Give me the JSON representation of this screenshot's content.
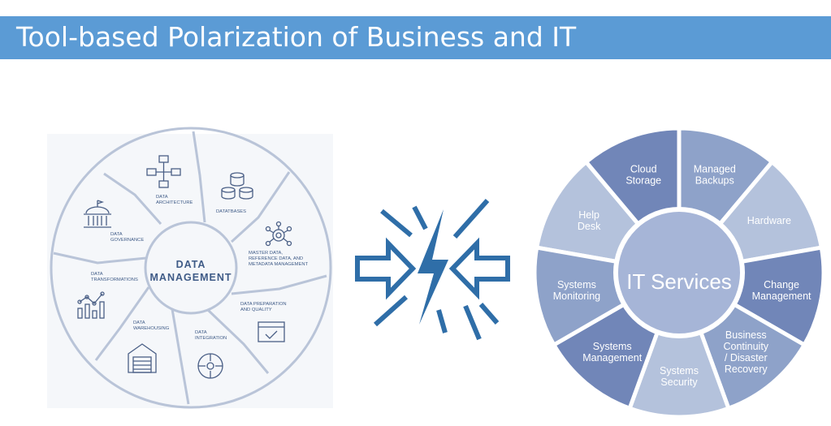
{
  "slide": {
    "title": "Tool-based Polarization of Business and IT"
  },
  "data_management": {
    "center_label_line1": "DATA",
    "center_label_line2": "MANAGEMENT",
    "segments": [
      {
        "lines": [
          "DATA",
          "ARCHITECTURE"
        ],
        "icon": "flowchart-icon"
      },
      {
        "lines": [
          "DATATBASES"
        ],
        "icon": "database-icon"
      },
      {
        "lines": [
          "MASTER DATA,",
          "REFERENCE DATA, AND",
          "METADATA MANAGEMENT"
        ],
        "icon": "gear-network-icon"
      },
      {
        "lines": [
          "DATA PREPARATION",
          "AND QUALITY"
        ],
        "icon": "checklist-window-icon"
      },
      {
        "lines": [
          "DATA",
          "INTEGRATION"
        ],
        "icon": "integration-hub-icon"
      },
      {
        "lines": [
          "DATA",
          "WAREHOUSING"
        ],
        "icon": "warehouse-icon"
      },
      {
        "lines": [
          "DATA",
          "TRANSFORMATIONS"
        ],
        "icon": "line-chart-icon"
      },
      {
        "lines": [
          "DATA",
          "GOVERNANCE"
        ],
        "icon": "government-building-icon"
      }
    ]
  },
  "conflict_symbol": {
    "icon": "lightning-bolt-icon",
    "arrows": [
      "arrow-right-icon",
      "arrow-left-icon"
    ]
  },
  "it_services": {
    "center_label": "IT Services",
    "segments": [
      {
        "lines": [
          "Help",
          "Desk"
        ]
      },
      {
        "lines": [
          "Cloud",
          "Storage"
        ]
      },
      {
        "lines": [
          "Managed",
          "Backups"
        ]
      },
      {
        "lines": [
          "Hardware"
        ]
      },
      {
        "lines": [
          "Change",
          "Management"
        ]
      },
      {
        "lines": [
          "Business",
          "Continuity",
          "/ Disaster",
          "Recovery"
        ]
      },
      {
        "lines": [
          "Systems",
          "Security"
        ]
      },
      {
        "lines": [
          "Systems",
          "Management"
        ]
      },
      {
        "lines": [
          "Systems",
          "Monitoring"
        ]
      }
    ],
    "colors": {
      "light": "#b4c2dc",
      "medium": "#8ea2c9",
      "dark": "#7186b8",
      "center": "#a6b5d7",
      "text": "#ffffff"
    }
  },
  "colors": {
    "title_bar": "#5b9bd5",
    "dm_line": "#b9c4d8",
    "dm_text": "#3f5b87",
    "dm_icon": "#4a5f86",
    "conflict_blue": "#2f6ea8"
  }
}
